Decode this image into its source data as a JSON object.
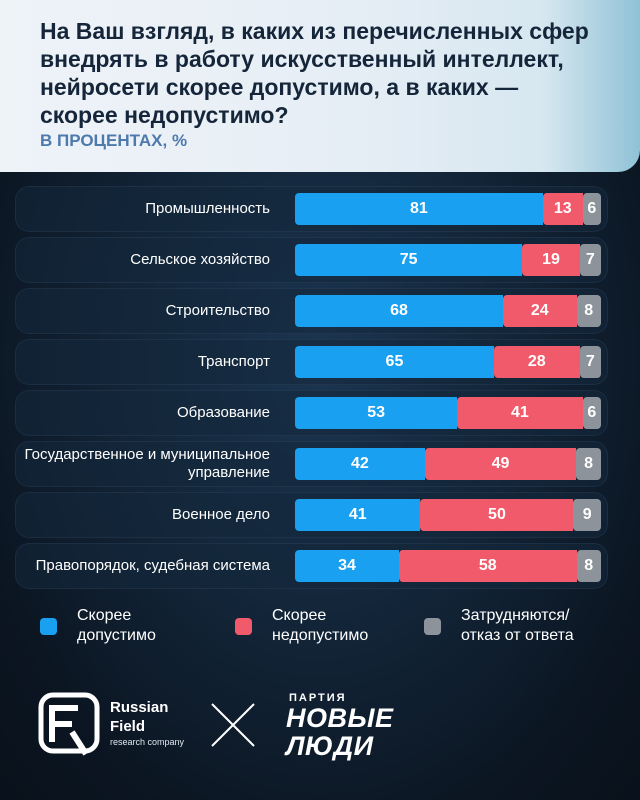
{
  "header": {
    "question": "На Ваш взгляд, в каких из перечисленных сфер внедрять в работу искусственный интеллект, нейросети скорее допустимо, а в каких — скорее недопустимо?",
    "subtitle": "В ПРОЦЕНТАХ, %"
  },
  "colors": {
    "yes": "#1aa0f0",
    "no": "#f05a6a",
    "na": "#8d939a"
  },
  "chart_data": {
    "type": "bar",
    "orientation": "horizontal",
    "stacked": true,
    "categories": [
      "Промышленность",
      "Сельское хозяйство",
      "Строительство",
      "Транспорт",
      "Образование",
      "Государственное и муниципальное управление",
      "Военное дело",
      "Правопорядок, судебная система"
    ],
    "series": [
      {
        "name": "Скорее допустимо",
        "values": [
          81,
          75,
          68,
          65,
          53,
          42,
          41,
          34
        ]
      },
      {
        "name": "Скорее недопустимо",
        "values": [
          13,
          19,
          24,
          28,
          41,
          49,
          50,
          58
        ]
      },
      {
        "name": "Затрудняются/ отказ от ответа",
        "values": [
          6,
          7,
          8,
          7,
          6,
          8,
          9,
          8
        ]
      }
    ],
    "title": "",
    "legend_position": "bottom"
  },
  "legend": [
    {
      "line1": "Скорее",
      "line2": "допустимо"
    },
    {
      "line1": "Скорее",
      "line2": "недопустимо"
    },
    {
      "line1": "Затрудняются/",
      "line2": "отказ от ответа"
    }
  ],
  "logos": {
    "rf_line1": "Russian",
    "rf_line2": "Field",
    "rf_line3": "research company",
    "party_small": "ПАРТИЯ",
    "party_big1": "НОВЫЕ",
    "party_big2": "ЛЮДИ"
  }
}
